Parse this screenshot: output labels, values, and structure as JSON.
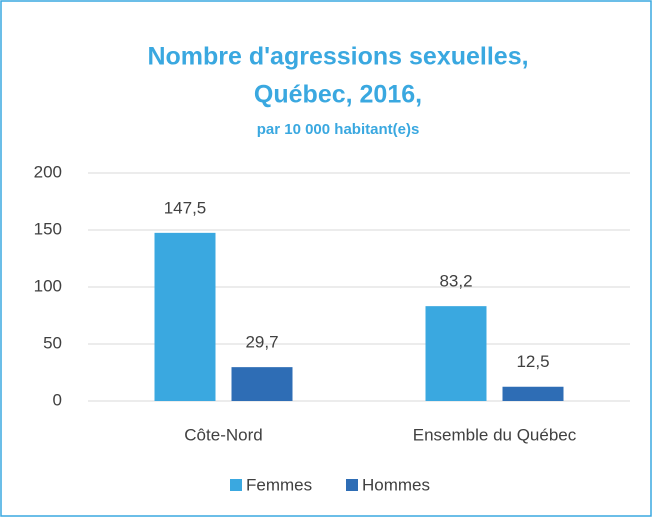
{
  "chart_data": {
    "type": "bar",
    "title": [
      "Nombre d'agressions sexuelles,",
      "Québec, 2016,"
    ],
    "subtitle": "par 10 000 habitant(e)s",
    "categories": [
      "Côte-Nord",
      "Ensemble du Québec"
    ],
    "series": [
      {
        "name": "Femmes",
        "color": "#3aa8e0",
        "values": [
          147.5,
          83.2
        ],
        "value_labels": [
          "147,5",
          "83,2"
        ]
      },
      {
        "name": "Hommes",
        "color": "#2e6db5",
        "values": [
          29.7,
          12.5
        ],
        "value_labels": [
          "29,7",
          "12,5"
        ]
      }
    ],
    "ylim": [
      0,
      200
    ],
    "yticks": [
      0,
      50,
      100,
      150,
      200
    ],
    "grid": true,
    "legend": "bottom"
  }
}
